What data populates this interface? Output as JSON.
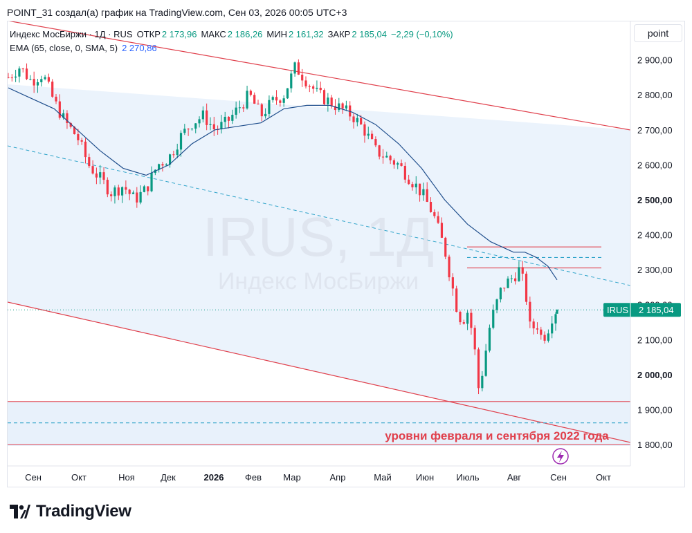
{
  "header": {
    "text": "POINT_31 создал(а) график на TradingView.com, Сен 03, 2026 00:05 UTC+3"
  },
  "legend": {
    "symbol": "Индекс МосБиржи · 1Д · RUS",
    "open_label": "ОТКР",
    "open": "2 173,96",
    "high_label": "МАКС",
    "high": "2 186,26",
    "low_label": "МИН",
    "low": "2 161,32",
    "close_label": "ЗАКР",
    "close": "2 185,04",
    "change": "−2,29 (−0,10%)",
    "ema_label": "EMA (65, close, 0, SMA, 5)",
    "ema_value": "2 270,86"
  },
  "point_button": "point",
  "watermark": {
    "ticker": "IRUS, 1Д",
    "name": "Индекс МосБиржи"
  },
  "price_tag": {
    "symbol": "IRUS",
    "value": "2 185,04"
  },
  "annotation": "уровни февраля и сентября 2022 года",
  "brand": "TradingView",
  "colors": {
    "up": "#089981",
    "down": "#f23645",
    "ema": "#1f4e8c",
    "channel_line": "#e0404c",
    "channel_fill": "#e8f1fb",
    "dashed": "#2ea3c9",
    "annotation": "#e0404c"
  },
  "chart_data": {
    "type": "candlestick",
    "symbol": "IRUS",
    "timeframe": "1Д",
    "y_ticks": [
      "1 800,00",
      "1 900,00",
      "2 000,00",
      "2 100,00",
      "2 200,00",
      "2 300,00",
      "2 400,00",
      "2 500,00",
      "2 600,00",
      "2 700,00",
      "2 800,00",
      "2 900,00"
    ],
    "y_bold_ticks": [
      "2 500,00",
      "2 000,00"
    ],
    "ylim": [
      1780,
      2960
    ],
    "x_ticks": [
      "Сен",
      "Окт",
      "Ноя",
      "Дек",
      "2026",
      "Фев",
      "Мар",
      "Апр",
      "Май",
      "Июн",
      "Июль",
      "Авг",
      "Сен",
      "Окт"
    ],
    "last_close": 2185.04,
    "horizontal_levels": [
      {
        "value": 2365,
        "style": "solid",
        "range": "Jul-Sep"
      },
      {
        "value": 2305,
        "style": "solid",
        "range": "Jul-Sep"
      },
      {
        "value": 2335,
        "style": "dashed",
        "range": "Jul-Sep"
      },
      {
        "value": 1923,
        "style": "solid",
        "range": "full"
      },
      {
        "value": 1862,
        "style": "dashed",
        "range": "full"
      },
      {
        "value": 1800,
        "style": "solid",
        "range": "full"
      }
    ],
    "ema_path": [
      [
        0,
        2820
      ],
      [
        20,
        2790
      ],
      [
        40,
        2760
      ],
      [
        60,
        2700
      ],
      [
        80,
        2640
      ],
      [
        100,
        2590
      ],
      [
        120,
        2570
      ],
      [
        140,
        2600
      ],
      [
        160,
        2660
      ],
      [
        180,
        2700
      ],
      [
        200,
        2710
      ],
      [
        220,
        2720
      ],
      [
        240,
        2760
      ],
      [
        260,
        2770
      ],
      [
        280,
        2770
      ],
      [
        300,
        2750
      ],
      [
        320,
        2715
      ],
      [
        340,
        2660
      ],
      [
        360,
        2590
      ],
      [
        380,
        2500
      ],
      [
        400,
        2430
      ],
      [
        420,
        2380
      ],
      [
        440,
        2350
      ],
      [
        450,
        2350
      ],
      [
        460,
        2335
      ],
      [
        470,
        2310
      ],
      [
        478,
        2271
      ]
    ],
    "candles_path": [
      [
        0,
        2850
      ],
      [
        10,
        2880
      ],
      [
        20,
        2840
      ],
      [
        30,
        2860
      ],
      [
        40,
        2780
      ],
      [
        50,
        2720
      ],
      [
        60,
        2680
      ],
      [
        70,
        2600
      ],
      [
        80,
        2560
      ],
      [
        90,
        2520
      ],
      [
        100,
        2540
      ],
      [
        110,
        2500
      ],
      [
        120,
        2530
      ],
      [
        130,
        2600
      ],
      [
        140,
        2620
      ],
      [
        150,
        2680
      ],
      [
        160,
        2720
      ],
      [
        170,
        2740
      ],
      [
        180,
        2700
      ],
      [
        190,
        2720
      ],
      [
        200,
        2760
      ],
      [
        210,
        2800
      ],
      [
        220,
        2740
      ],
      [
        230,
        2780
      ],
      [
        240,
        2800
      ],
      [
        250,
        2880
      ],
      [
        260,
        2840
      ],
      [
        270,
        2800
      ],
      [
        280,
        2780
      ],
      [
        290,
        2760
      ],
      [
        300,
        2740
      ],
      [
        310,
        2700
      ],
      [
        320,
        2640
      ],
      [
        330,
        2620
      ],
      [
        340,
        2600
      ],
      [
        350,
        2560
      ],
      [
        360,
        2520
      ],
      [
        370,
        2460
      ],
      [
        380,
        2360
      ],
      [
        385,
        2280
      ],
      [
        390,
        2200
      ],
      [
        395,
        2150
      ],
      [
        400,
        2180
      ],
      [
        405,
        2110
      ],
      [
        410,
        1950
      ],
      [
        415,
        2050
      ],
      [
        420,
        2150
      ],
      [
        430,
        2250
      ],
      [
        440,
        2280
      ],
      [
        445,
        2300
      ],
      [
        450,
        2250
      ],
      [
        455,
        2120
      ],
      [
        460,
        2150
      ],
      [
        465,
        2100
      ],
      [
        470,
        2130
      ],
      [
        475,
        2180
      ],
      [
        478,
        2185
      ]
    ]
  }
}
